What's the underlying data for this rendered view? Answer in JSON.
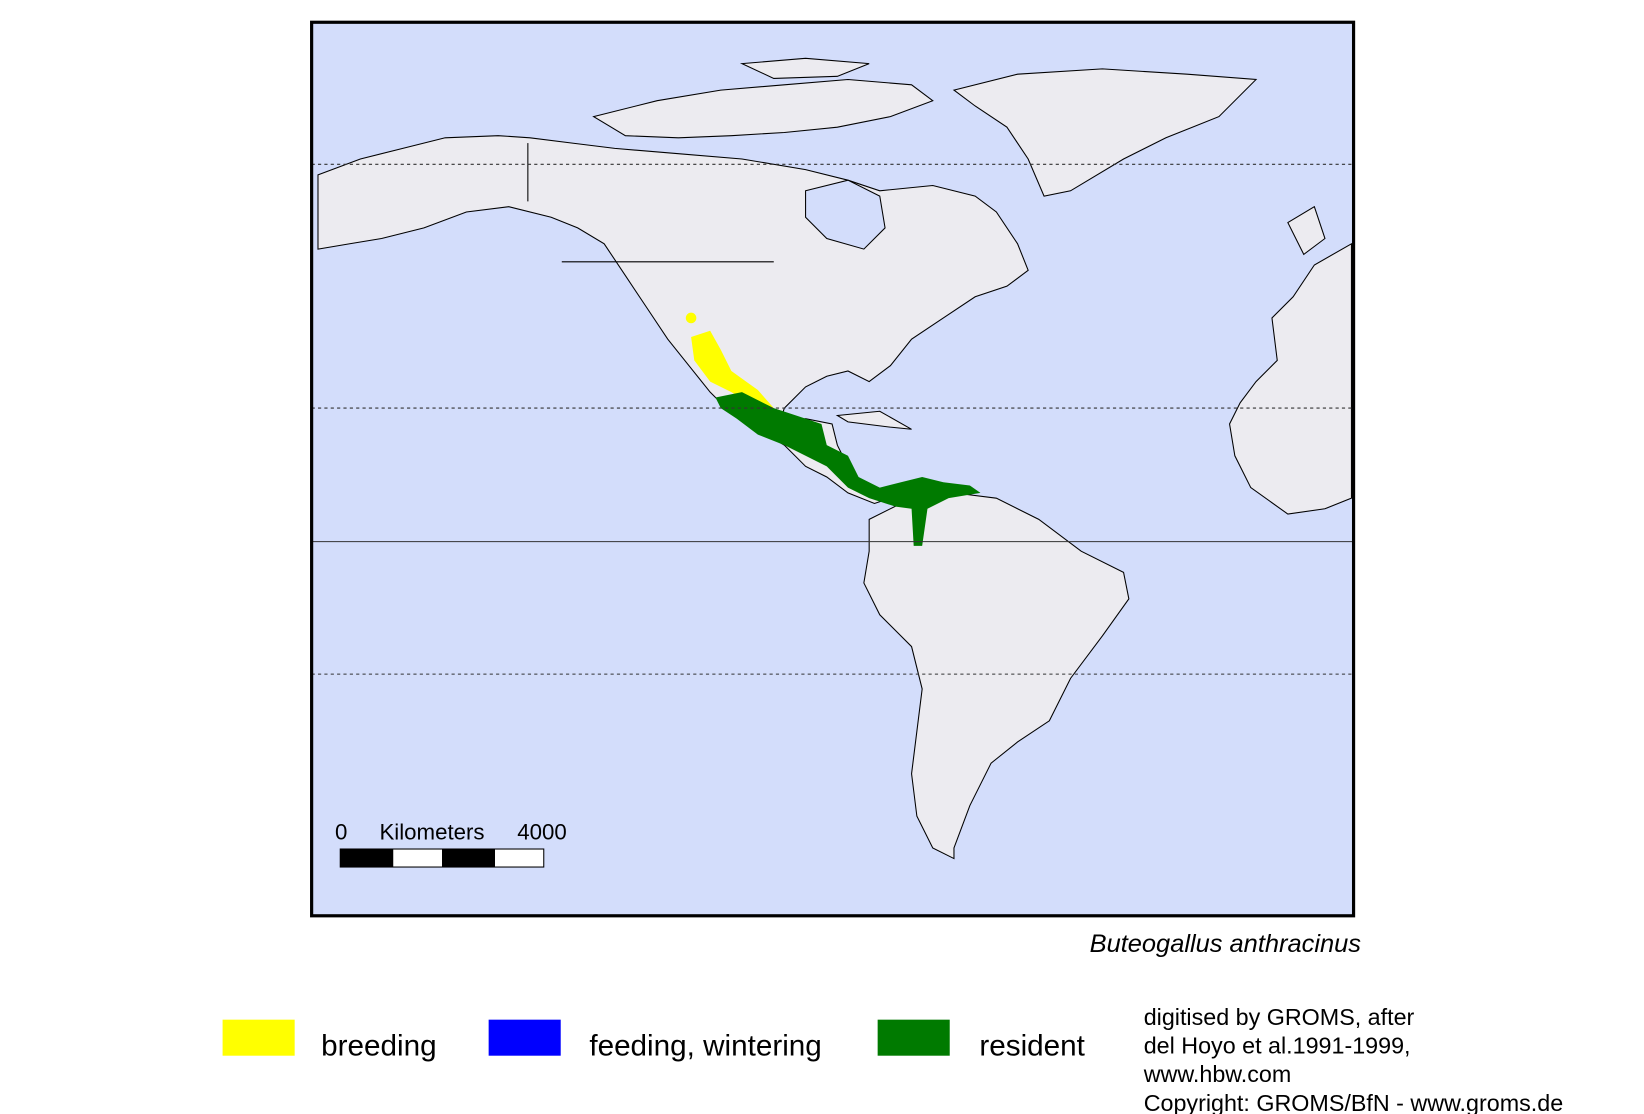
{
  "map": {
    "scale_bar": {
      "start": 0,
      "unit": "Kilometers",
      "end": 4000
    },
    "species": "Buteogallus anthracinus"
  },
  "legend": [
    {
      "label": "breeding",
      "color": "#ffff00"
    },
    {
      "label": "feeding, wintering",
      "color": "#0000ff"
    },
    {
      "label": "resident",
      "color": "#007a00"
    }
  ],
  "credits": [
    "digitised by GROMS, after",
    "del Hoyo et al.1991-1999,",
    "www.hbw.com",
    "Copyright: GROMS/BfN - www.groms.de"
  ]
}
